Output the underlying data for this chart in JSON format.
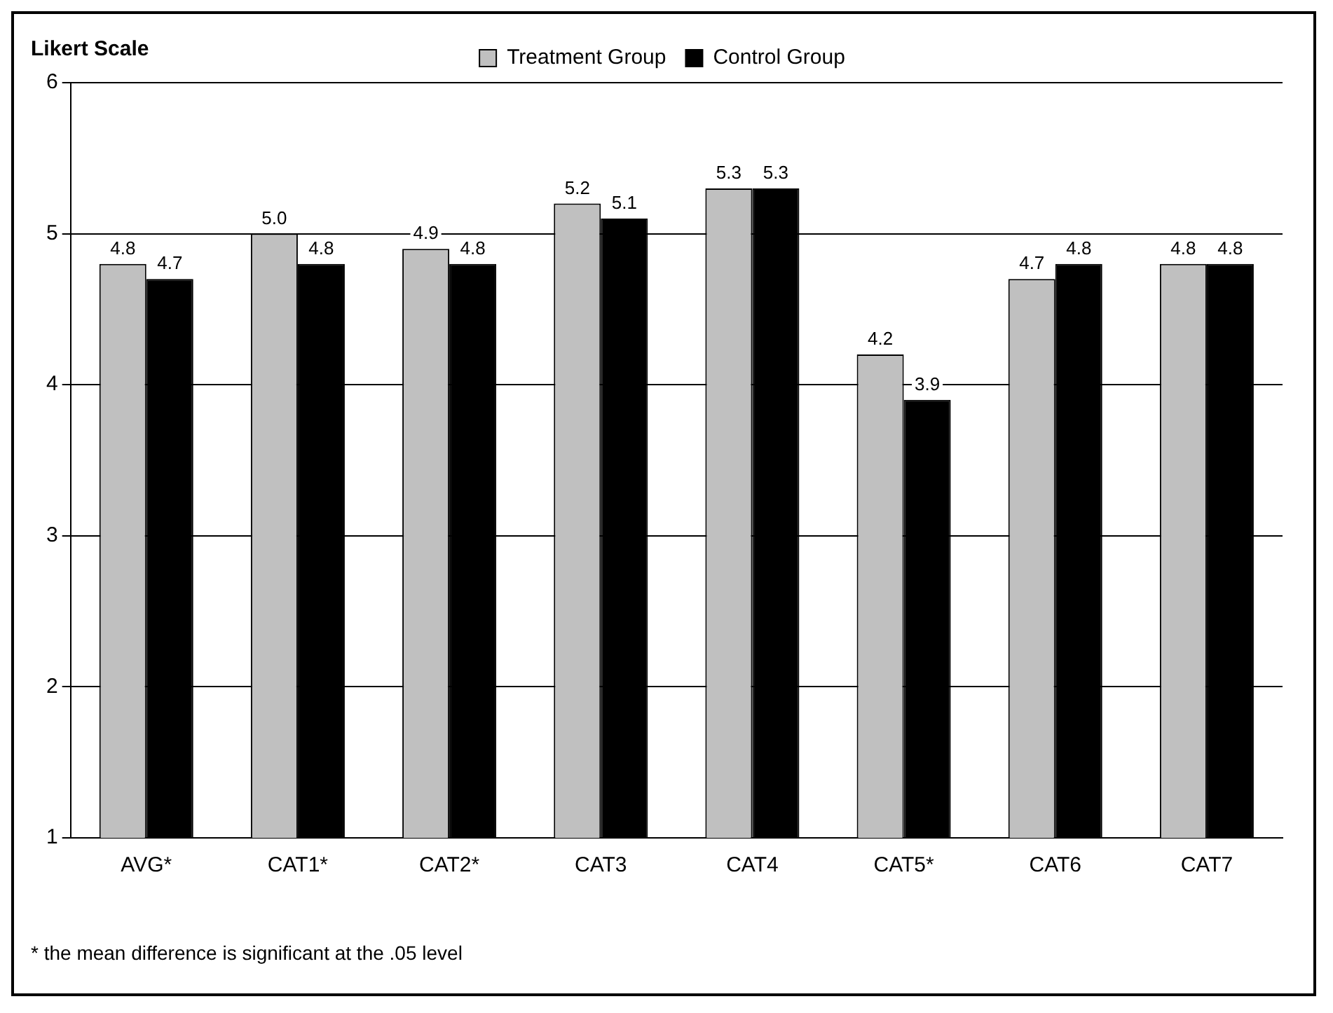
{
  "chart_data": {
    "type": "bar",
    "ylabel": "Likert Scale",
    "categories": [
      "AVG*",
      "CAT1*",
      "CAT2*",
      "CAT3",
      "CAT4",
      "CAT5*",
      "CAT6",
      "CAT7"
    ],
    "series": [
      {
        "name": "Treatment Group",
        "color": "#c0c0c0",
        "values": [
          4.8,
          5.0,
          4.9,
          5.2,
          5.3,
          4.2,
          4.7,
          4.8
        ],
        "value_labels": [
          "4.8",
          "5.0",
          "4.9",
          "5.2",
          "5.3",
          "4.2",
          "4.7",
          "4.8"
        ]
      },
      {
        "name": "Control Group",
        "color": "#000000",
        "values": [
          4.7,
          4.8,
          4.8,
          5.1,
          5.3,
          3.9,
          4.8,
          4.8
        ],
        "value_labels": [
          "4.7",
          "4.8",
          "4.8",
          "5.1",
          "5.3",
          "3.9",
          "4.8",
          "4.8"
        ]
      }
    ],
    "ylim": [
      1,
      6
    ],
    "yticks": [
      1,
      2,
      3,
      4,
      5,
      6
    ],
    "grid": "y",
    "legend": "top",
    "annotations": [
      "* the mean difference is significant at the .05 level"
    ]
  }
}
